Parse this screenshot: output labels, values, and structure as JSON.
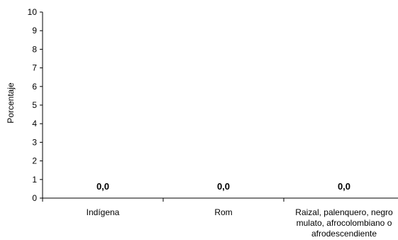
{
  "chart_data": {
    "type": "bar",
    "categories": [
      "Indígena",
      "Rom",
      "Raizal, palenquero, negro mulato, afrocolombiano o afrodescendiente"
    ],
    "values": [
      0,
      0,
      0
    ],
    "data_labels": [
      "0,0",
      "0,0",
      "0,0"
    ],
    "title": "",
    "xlabel": "",
    "ylabel": "Porcentaje",
    "ylim": [
      0,
      10
    ],
    "yticks": [
      "0",
      "1",
      "2",
      "3",
      "4",
      "5",
      "6",
      "7",
      "8",
      "9",
      "10"
    ],
    "grid": false,
    "legend": "none",
    "colors": {
      "axis": "#000000",
      "text": "#000000",
      "bar": "#808080"
    }
  }
}
